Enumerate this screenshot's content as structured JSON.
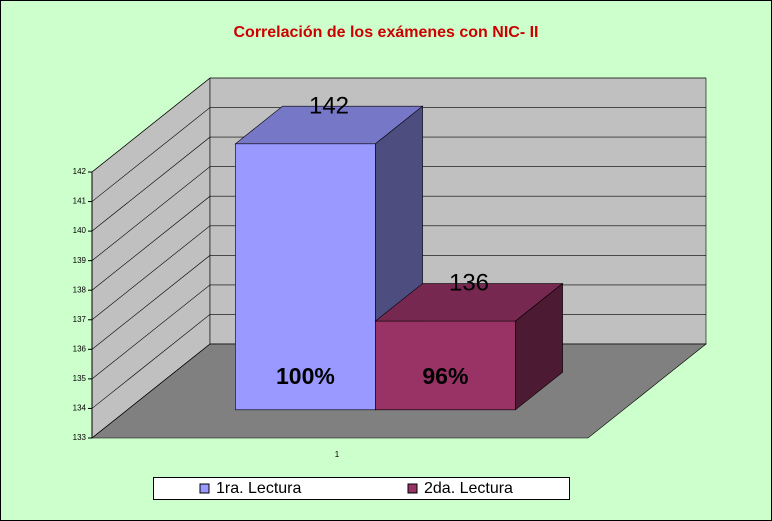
{
  "chart_data": {
    "type": "bar3d",
    "title": "Correlación de los exámenes con NIC- II",
    "categories": [
      "1"
    ],
    "series": [
      {
        "name": "1ra. Lectura",
        "color": "#9999ff",
        "values": [
          142
        ],
        "percent_labels": [
          "100%"
        ]
      },
      {
        "name": "2da. Lectura",
        "color": "#993366",
        "values": [
          136
        ],
        "percent_labels": [
          "96%"
        ]
      }
    ],
    "ylim": [
      133,
      142
    ],
    "yticks": [
      133,
      134,
      135,
      136,
      137,
      138,
      139,
      140,
      141,
      142
    ],
    "grid": true
  }
}
